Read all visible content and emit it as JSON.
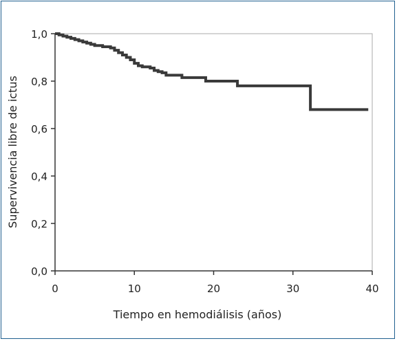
{
  "chart_data": {
    "type": "line",
    "title": "",
    "xlabel": "Tiempo en hemodiálisis (años)",
    "ylabel": "Supervivencia libre de ictus",
    "xlim": [
      0,
      40
    ],
    "ylim": [
      0,
      1
    ],
    "x_ticks": [
      0,
      10,
      20,
      30,
      40
    ],
    "x_tick_labels": [
      "0",
      "10",
      "20",
      "30",
      "40"
    ],
    "y_ticks": [
      0,
      0.2,
      0.4,
      0.6,
      0.8,
      1.0
    ],
    "y_tick_labels": [
      "0,0",
      "0,2",
      "0,4",
      "0,6",
      "0,8",
      "1,0"
    ],
    "grid": false,
    "step": true,
    "series": [
      {
        "name": "",
        "color": "#3a3a3a",
        "x": [
          0,
          0.5,
          1.0,
          1.5,
          2.0,
          2.5,
          3.0,
          3.5,
          4.0,
          4.5,
          5.0,
          6.0,
          7.0,
          7.5,
          8.0,
          8.5,
          9.0,
          9.5,
          10.0,
          10.5,
          11.0,
          12.0,
          12.5,
          13.0,
          13.5,
          14.0,
          16.0,
          19.0,
          23.0,
          32.2,
          39.5
        ],
        "y": [
          1.0,
          0.995,
          0.99,
          0.985,
          0.98,
          0.975,
          0.97,
          0.965,
          0.96,
          0.955,
          0.95,
          0.945,
          0.94,
          0.93,
          0.92,
          0.91,
          0.9,
          0.89,
          0.875,
          0.865,
          0.86,
          0.855,
          0.845,
          0.84,
          0.835,
          0.825,
          0.815,
          0.8,
          0.78,
          0.68,
          0.68
        ]
      }
    ]
  }
}
